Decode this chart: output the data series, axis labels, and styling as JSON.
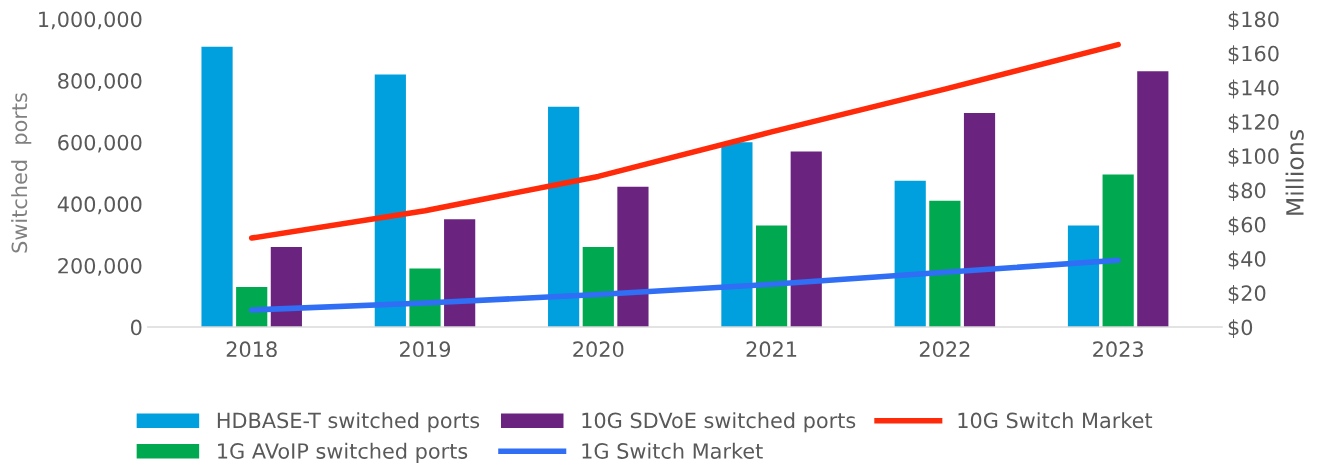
{
  "chart_data": {
    "type": "bar",
    "ylabel": "Switched  ports",
    "y2label": "Millions",
    "categories": [
      "2018",
      "2019",
      "2020",
      "2021",
      "2022",
      "2023"
    ],
    "series": [
      {
        "name": "HDBASE-T switched ports",
        "color": "#00a0df",
        "values": [
          910000,
          820000,
          715000,
          600000,
          475000,
          330000
        ]
      },
      {
        "name": "1G AVoIP switched ports",
        "color": "#00a84f",
        "values": [
          130000,
          190000,
          260000,
          330000,
          410000,
          495000
        ]
      },
      {
        "name": "10G SDVoE switched ports",
        "color": "#6b2380",
        "values": [
          260000,
          350000,
          455000,
          570000,
          695000,
          830000
        ]
      },
      {
        "name": "1G Switch Market",
        "type": "line",
        "axis": "y2",
        "color": "#2f6ef5",
        "values": [
          10,
          14,
          19,
          25,
          32,
          39
        ]
      },
      {
        "name": "10G Switch Market",
        "type": "line",
        "axis": "y2",
        "color": "#ff2a0a",
        "values": [
          52,
          68,
          88,
          114,
          139,
          165
        ]
      }
    ],
    "ylim": [
      0,
      1000000
    ],
    "yticks": [
      {
        "value": 0,
        "label": "0"
      },
      {
        "value": 200000,
        "label": "200,000"
      },
      {
        "value": 400000,
        "label": "400,000"
      },
      {
        "value": 600000,
        "label": "600,000"
      },
      {
        "value": 800000,
        "label": "800,000"
      },
      {
        "value": 1000000,
        "label": "1,000,000"
      }
    ],
    "y2lim": [
      0,
      180
    ],
    "y2ticks": [
      {
        "value": 0,
        "label": "$0"
      },
      {
        "value": 20,
        "label": "$20"
      },
      {
        "value": 40,
        "label": "$40"
      },
      {
        "value": 60,
        "label": "$60"
      },
      {
        "value": 80,
        "label": "$80"
      },
      {
        "value": 100,
        "label": "$100"
      },
      {
        "value": 120,
        "label": "$120"
      },
      {
        "value": 140,
        "label": "$140"
      },
      {
        "value": 160,
        "label": "$160"
      },
      {
        "value": 180,
        "label": "$180"
      }
    ],
    "grid": false,
    "legend": "bottom",
    "marker": "none",
    "line_style": "solid"
  }
}
